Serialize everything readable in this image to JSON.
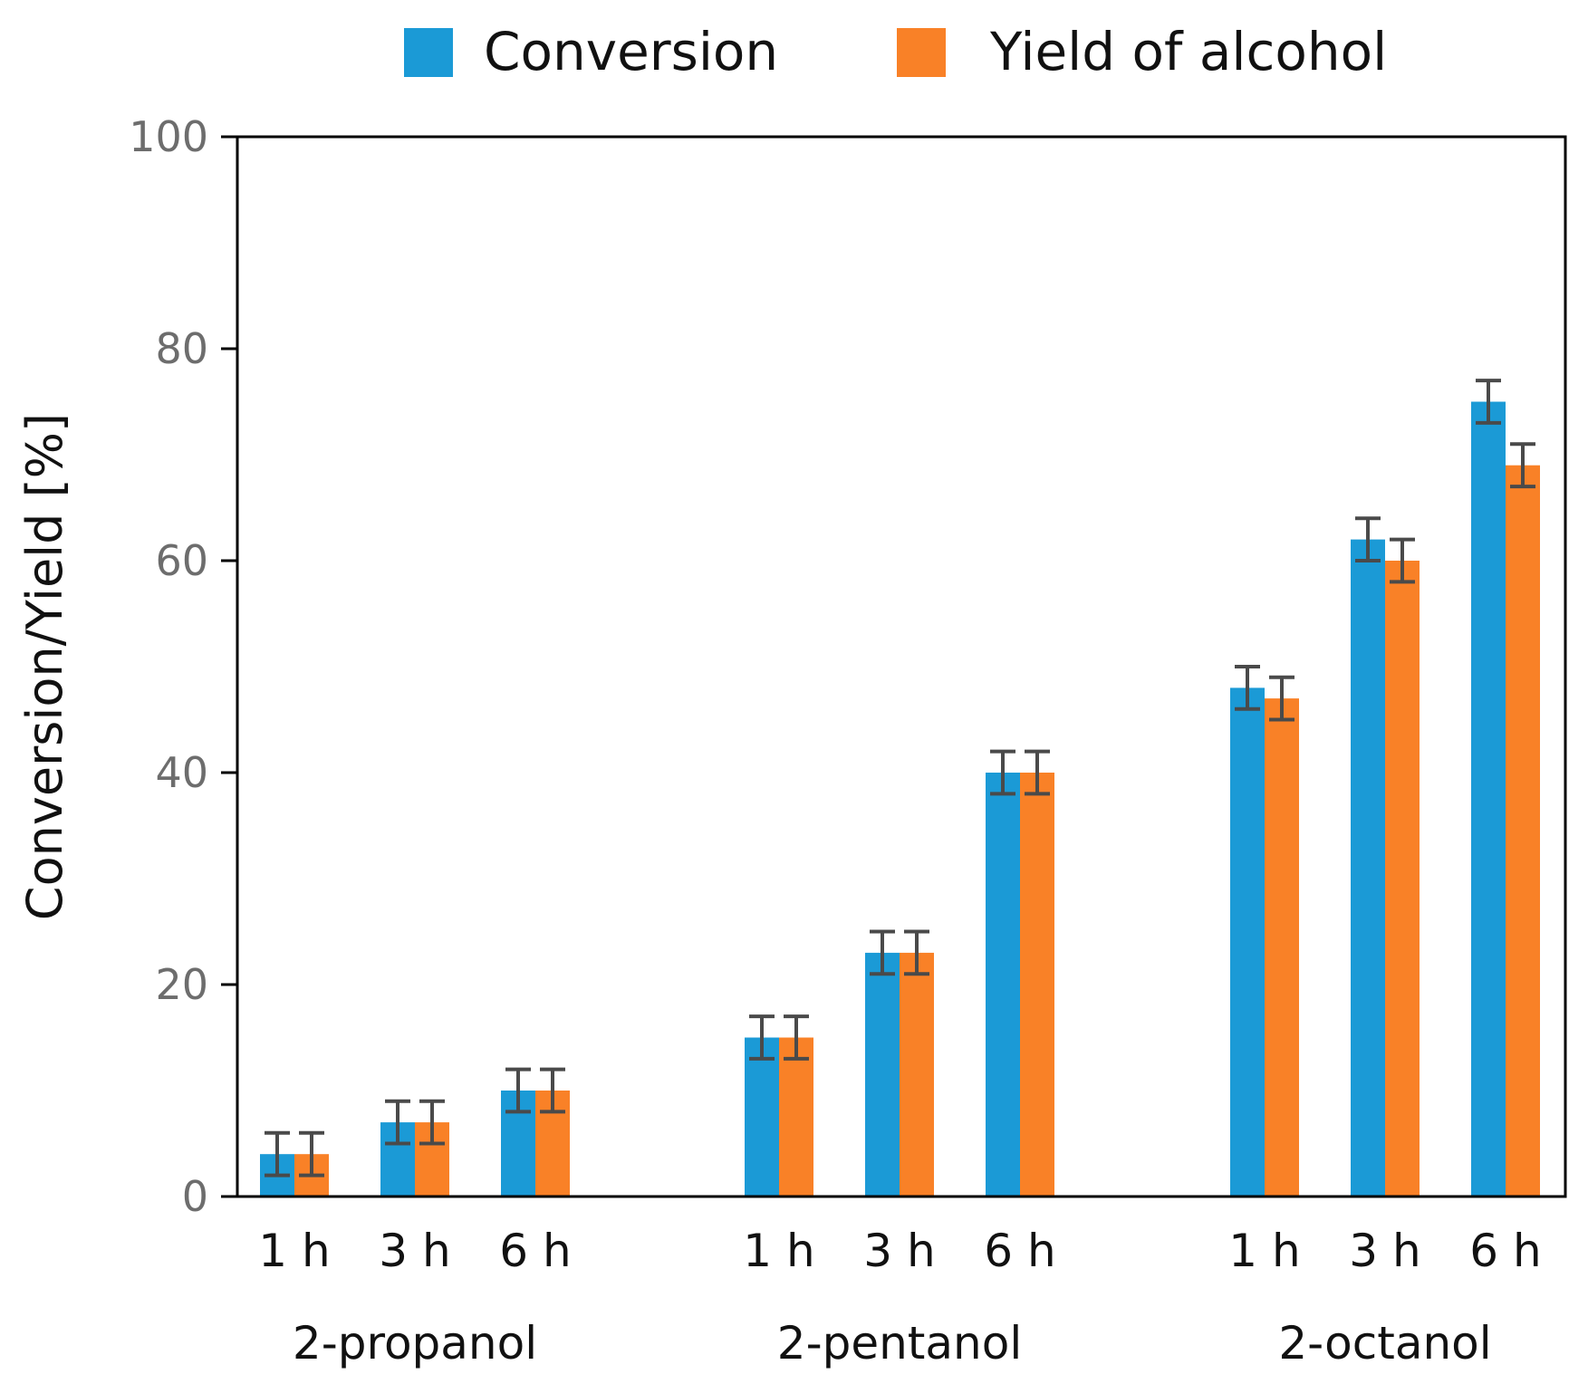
{
  "chart_data": {
    "type": "bar",
    "title": "",
    "xlabel": "",
    "ylabel": "Conversion/Yield [%]",
    "ylim": [
      0,
      100
    ],
    "yticks": [
      0,
      20,
      40,
      60,
      80,
      100
    ],
    "grid": false,
    "legend_position": "top",
    "groups": [
      {
        "name": "2-propanol",
        "times": [
          "1 h",
          "3 h",
          "6 h"
        ]
      },
      {
        "name": "2-pentanol",
        "times": [
          "1 h",
          "3 h",
          "6 h"
        ]
      },
      {
        "name": "2-octanol",
        "times": [
          "1 h",
          "3 h",
          "6 h"
        ]
      }
    ],
    "series": [
      {
        "name": "Conversion",
        "color": "#1b9ad6",
        "values": [
          4,
          7,
          10,
          15,
          23,
          40,
          48,
          62,
          75
        ],
        "errors": [
          2,
          2,
          2,
          2,
          2,
          2,
          2,
          2,
          2
        ]
      },
      {
        "name": "Yield of alcohol",
        "color": "#f98127",
        "values": [
          4,
          7,
          10,
          15,
          23,
          40,
          47,
          60,
          69
        ],
        "errors": [
          2,
          2,
          2,
          2,
          2,
          2,
          2,
          2,
          2
        ]
      }
    ],
    "error_bar_color": "#4a4a4a"
  }
}
